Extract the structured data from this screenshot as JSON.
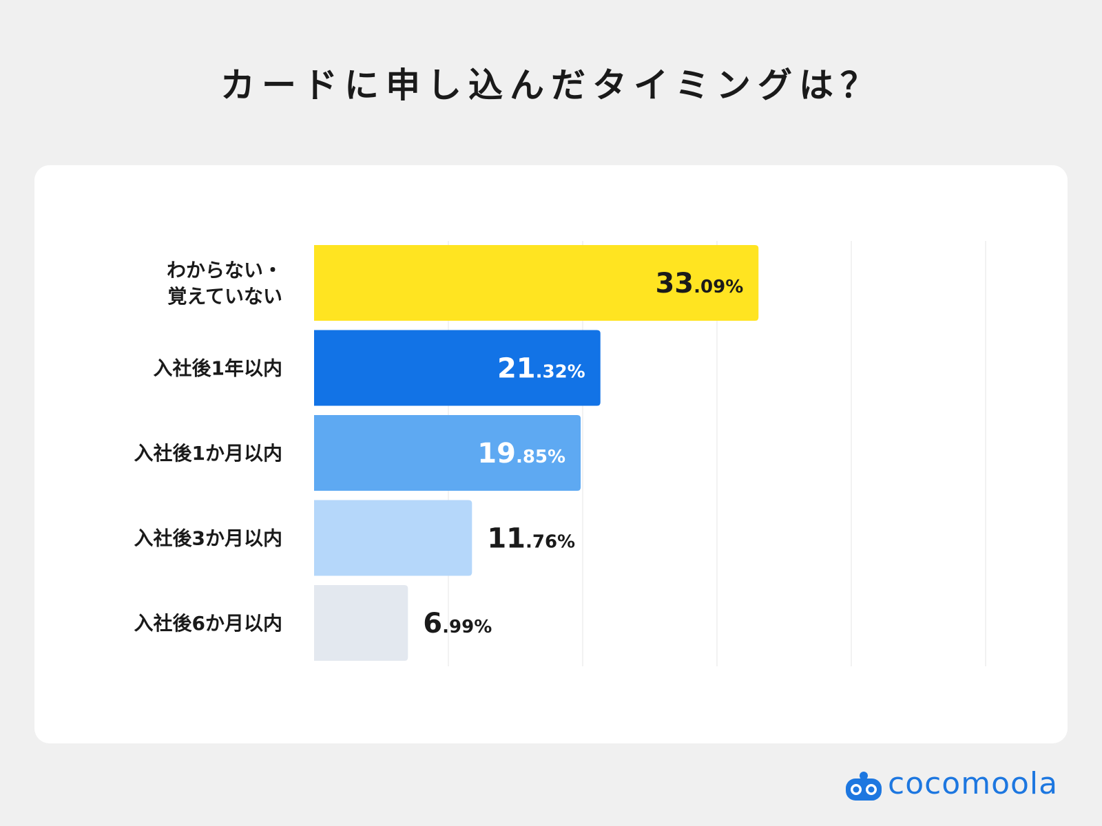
{
  "title": "カードに申し込んだタイミングは？",
  "logo_text": "cocomoola",
  "chart_data": {
    "type": "bar",
    "orientation": "horizontal",
    "title": "カードに申し込んだタイミングは？",
    "xlabel": "",
    "ylabel": "",
    "xlim": [
      0,
      50
    ],
    "grid": true,
    "categories": [
      [
        "わからない・",
        "覚えていない"
      ],
      [
        "入社後1年以内"
      ],
      [
        "入社後1か月以内"
      ],
      [
        "入社後3か月以内"
      ],
      [
        "入社後6か月以内"
      ]
    ],
    "values": [
      33.09,
      21.32,
      19.85,
      11.76,
      6.99
    ],
    "value_labels": [
      {
        "int": "33",
        "dec": ".09%"
      },
      {
        "int": "21",
        "dec": ".32%"
      },
      {
        "int": "19",
        "dec": ".85%"
      },
      {
        "int": "11",
        "dec": ".76%"
      },
      {
        "int": "6",
        "dec": ".99%"
      }
    ],
    "colors": [
      "#ffe421",
      "#1273e6",
      "#5ea9f2",
      "#b5d7fa",
      "#e3e8ef"
    ],
    "label_colors": [
      "#1a1a1a",
      "#ffffff",
      "#ffffff",
      "#1a1a1a",
      "#1a1a1a"
    ],
    "grid_color": "#eeeeee"
  }
}
